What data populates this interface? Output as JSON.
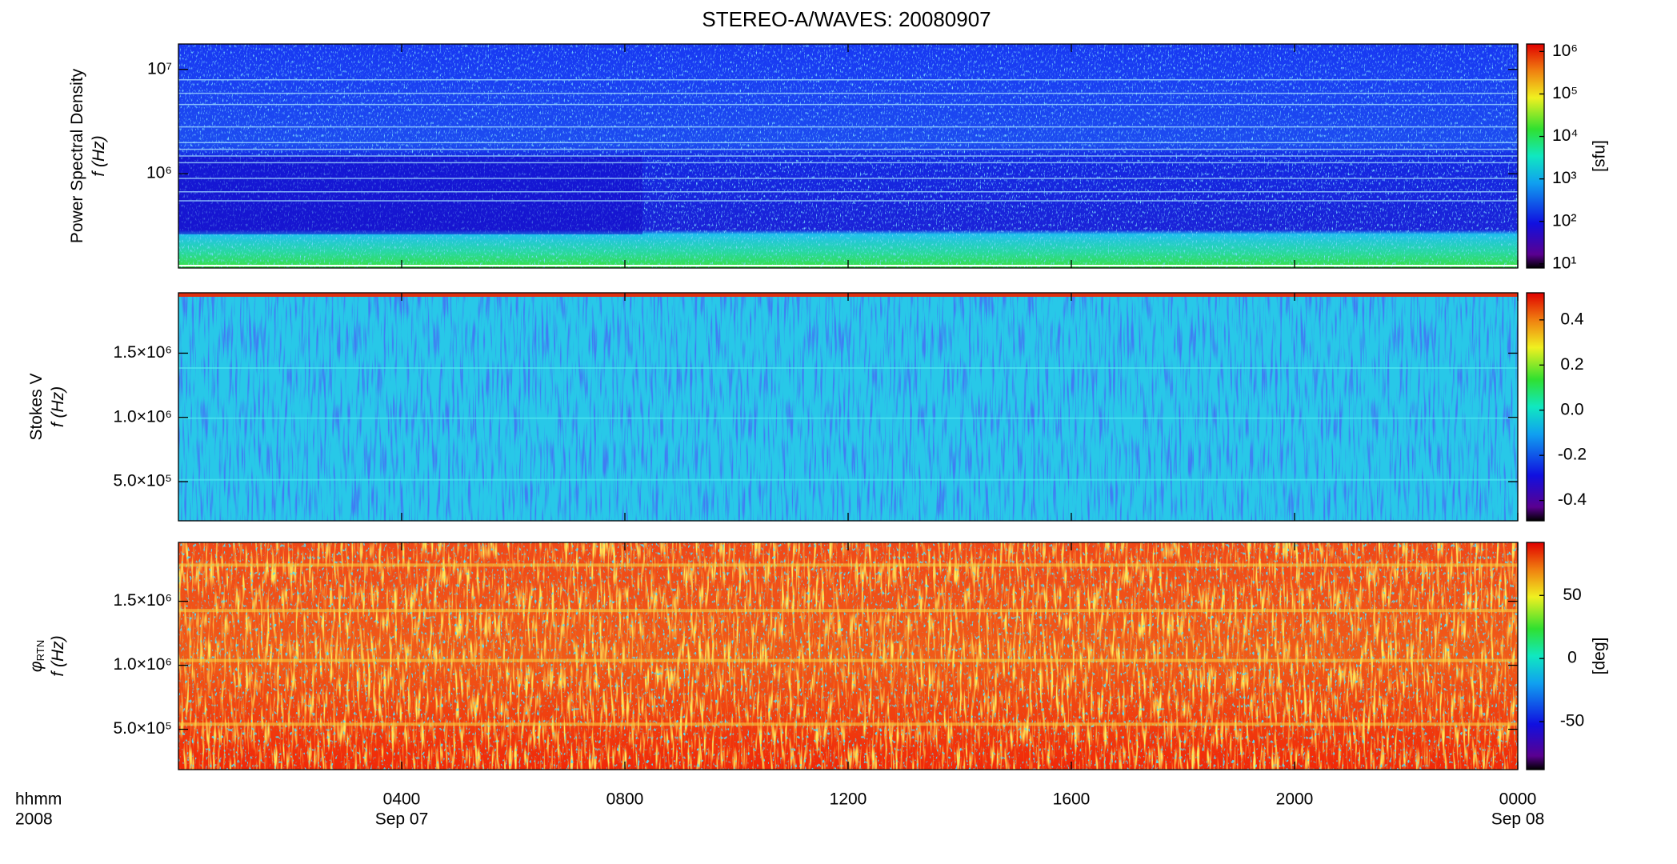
{
  "title": "STEREO-A/WAVES: 20080907",
  "corner_labels": [
    "hhmm",
    "2008"
  ],
  "chart_data": [
    {
      "type": "heatmap",
      "ylabel": [
        "Power Spectral Density",
        "f (Hz)"
      ],
      "ylog": true,
      "ylim": [
        125000,
        17500000
      ],
      "yticks": [
        {
          "value": 1000000,
          "label": "10⁶"
        },
        {
          "value": 10000000,
          "label": "10⁷"
        }
      ],
      "colorbar": {
        "log": true,
        "lim": [
          8,
          1500000
        ],
        "label": "[sfu]",
        "ticks": [
          {
            "value": 10,
            "label": "10¹"
          },
          {
            "value": 100,
            "label": "10²"
          },
          {
            "value": 1000,
            "label": "10³"
          },
          {
            "value": 10000,
            "label": "10⁴"
          },
          {
            "value": 100000,
            "label": "10⁵"
          },
          {
            "value": 1000000,
            "label": "10⁶"
          }
        ]
      }
    },
    {
      "type": "heatmap",
      "ylabel": [
        "Stokes V",
        "f (Hz)"
      ],
      "ylog": false,
      "ylim": [
        195000,
        1970000
      ],
      "yticks": [
        {
          "value": 500000,
          "label": "5.0×10⁵"
        },
        {
          "value": 1000000,
          "label": "1.0×10⁶"
        },
        {
          "value": 1500000,
          "label": "1.5×10⁶"
        }
      ],
      "colorbar": {
        "log": false,
        "lim": [
          -0.49,
          0.52
        ],
        "ticks": [
          -0.4,
          -0.2,
          {
            "value": 0,
            "label": "0.0"
          },
          0.2,
          0.4
        ]
      }
    },
    {
      "type": "heatmap",
      "ylabel": [
        "φ",
        "f (Hz)"
      ],
      "ylabel_subscript": "RTN",
      "ylog": false,
      "ylim": [
        185000,
        1960000
      ],
      "yticks": [
        {
          "value": 500000,
          "label": "5.0×10⁵"
        },
        {
          "value": 1000000,
          "label": "1.0×10⁶"
        },
        {
          "value": 1500000,
          "label": "1.5×10⁶"
        }
      ],
      "colorbar": {
        "log": false,
        "lim": [
          -88,
          92
        ],
        "label": "[deg]",
        "ticks": [
          -50,
          0,
          50
        ]
      },
      "xlim": [
        0,
        24
      ],
      "xticks": [
        {
          "value": 4,
          "label": "0400"
        },
        {
          "value": 8,
          "label": "0800"
        },
        {
          "value": 12,
          "label": "1200"
        },
        {
          "value": 16,
          "label": "1600"
        },
        {
          "value": 20,
          "label": "2000"
        },
        {
          "value": 24,
          "label": "0000"
        }
      ],
      "date_labels": [
        {
          "value": 4,
          "label": "Sep 07"
        },
        {
          "value": 24,
          "label": "Sep 08"
        }
      ]
    }
  ]
}
